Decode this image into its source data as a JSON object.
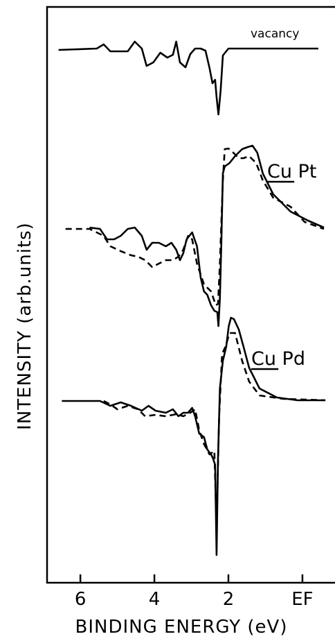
{
  "chart_data": {
    "type": "line",
    "xlabel": "BINDING ENERGY (eV)",
    "ylabel": "INTENSITY (arb.units)",
    "xlim": [
      6.9,
      -0.88
    ],
    "ylim": [
      0,
      830
    ],
    "xticks": [
      6,
      4,
      2,
      {
        "value": 0,
        "label": "EF"
      }
    ],
    "series": [
      {
        "name": "vacancy",
        "color": "#000000",
        "dashed": false,
        "x": [
          6.59,
          5.56,
          5.37,
          5.19,
          4.72,
          4.53,
          4.34,
          4.21,
          4.03,
          3.84,
          3.65,
          3.5,
          3.41,
          3.31,
          3.16,
          3.03,
          2.9,
          2.75,
          2.62,
          2.51,
          2.43,
          2.36,
          2.32,
          2.27,
          2.21,
          2.15,
          2.0,
          -0.43
        ],
        "values": [
          768,
          770,
          776,
          766,
          766,
          780,
          770,
          745,
          750,
          764,
          757,
          761,
          780,
          750,
          743,
          762,
          770,
          770,
          767,
          742,
          720,
          725,
          700,
          675,
          710,
          760,
          770,
          770
        ]
      },
      {
        "name": "Cu Pt",
        "color": "#000000",
        "dashed": false,
        "x": [
          5.75,
          5.47,
          5.28,
          5.09,
          4.91,
          4.72,
          4.53,
          4.34,
          4.21,
          4.06,
          3.88,
          3.69,
          3.54,
          3.41,
          3.31,
          3.22,
          3.13,
          2.98,
          2.85,
          2.75,
          2.66,
          2.57,
          2.47,
          2.38,
          2.3,
          2.27,
          2.23,
          2.19,
          2.15,
          2.1,
          1.97,
          1.82,
          1.63,
          1.48,
          1.35,
          1.22,
          1.07,
          0.79,
          0.32,
          -0.15,
          -0.58
        ],
        "values": [
          512,
          510,
          495,
          495,
          500,
          510,
          512,
          500,
          480,
          490,
          490,
          485,
          490,
          480,
          465,
          475,
          495,
          505,
          485,
          440,
          420,
          415,
          400,
          392,
          390,
          370,
          410,
          490,
          590,
          600,
          605,
          615,
          625,
          628,
          630,
          620,
          590,
          560,
          535,
          522,
          512
        ]
      },
      {
        "color": "#000000",
        "dashed": true,
        "x": [
          6.4,
          5.75,
          5.37,
          5.19,
          4.91,
          4.63,
          4.44,
          4.25,
          4.06,
          3.88,
          3.69,
          3.5,
          3.35,
          3.22,
          3.09,
          2.98,
          2.85,
          2.66,
          2.47,
          2.34,
          2.28,
          2.23,
          2.15,
          2.1,
          2.0,
          1.87,
          1.72,
          1.59,
          1.44,
          1.25,
          1.07,
          0.79,
          0.32,
          -0.06,
          -0.58
        ],
        "values": [
          510,
          510,
          500,
          485,
          478,
          472,
          470,
          465,
          455,
          460,
          465,
          465,
          470,
          480,
          500,
          495,
          460,
          430,
          420,
          400,
          402,
          460,
          580,
          625,
          626,
          620,
          612,
          612,
          615,
          605,
          580,
          555,
          542,
          520,
          510
        ]
      },
      {
        "name": "Cu Pd",
        "color": "#000000",
        "dashed": false,
        "x": [
          6.5,
          5.47,
          5.19,
          4.91,
          4.63,
          4.34,
          4.16,
          3.97,
          3.69,
          3.5,
          3.35,
          3.22,
          3.09,
          2.98,
          2.9,
          2.79,
          2.66,
          2.57,
          2.47,
          2.42,
          2.36,
          2.32,
          2.28,
          2.23,
          2.15,
          2.06,
          1.99,
          1.93,
          1.85,
          1.72,
          1.59,
          1.44,
          1.16,
          0.69,
          0.13,
          -0.62
        ],
        "values": [
          262,
          262,
          255,
          260,
          255,
          248,
          255,
          248,
          245,
          250,
          240,
          245,
          245,
          252,
          240,
          215,
          210,
          192,
          185,
          180,
          170,
          40,
          180,
          280,
          320,
          340,
          370,
          382,
          380,
          365,
          340,
          310,
          280,
          267,
          263,
          263
        ]
      },
      {
        "color": "#000000",
        "dashed": true,
        "x": [
          5.37,
          5.19,
          5.0,
          4.72,
          4.44,
          4.25,
          3.97,
          3.69,
          3.41,
          3.22,
          3.03,
          2.9,
          2.79,
          2.66,
          2.51,
          2.38,
          2.32,
          2.25,
          2.17,
          2.08,
          1.97,
          1.82,
          1.63,
          1.44,
          1.16,
          0.51,
          -0.62
        ],
        "values": [
          262,
          257,
          250,
          255,
          250,
          240,
          242,
          240,
          243,
          240,
          245,
          250,
          220,
          200,
          185,
          190,
          80,
          240,
          330,
          340,
          360,
          360,
          320,
          290,
          270,
          265,
          263
        ]
      }
    ]
  }
}
